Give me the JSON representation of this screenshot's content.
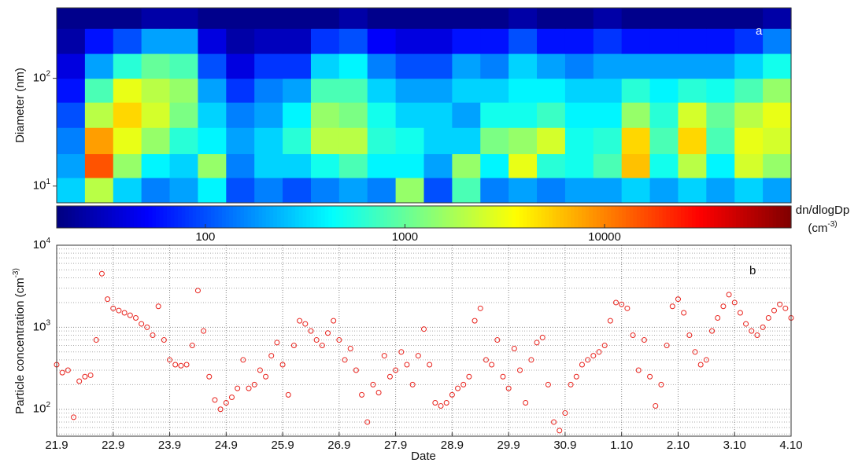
{
  "chart_data": [
    {
      "type": "heatmap",
      "ylabel": "Diameter (nm)",
      "annotation": "a",
      "xlim": [
        0,
        13
      ],
      "ylim": [
        7,
        450
      ],
      "log_y": true,
      "yticks": [
        {
          "value": 10,
          "label": "10^1"
        },
        {
          "value": 100,
          "label": "10^2"
        }
      ],
      "y_bins": [
        7,
        12,
        20,
        35,
        60,
        100,
        170,
        290,
        450
      ],
      "clim": [
        18,
        86000
      ],
      "cticks": [
        100,
        1000,
        10000
      ],
      "colormap": "jet",
      "colorbar_label": "dn/dlogDp",
      "colorbar_unit": "(cm^-3)",
      "values": [
        [
          300,
          2000,
          300,
          150,
          200,
          400,
          100,
          150,
          100,
          150,
          200,
          150,
          1500,
          100,
          800,
          150,
          200,
          150,
          200,
          200,
          300,
          200,
          300,
          200,
          300,
          200
        ],
        [
          200,
          15000,
          1500,
          400,
          300,
          1500,
          150,
          300,
          300,
          500,
          800,
          400,
          400,
          200,
          1500,
          400,
          3000,
          600,
          500,
          800,
          6000,
          500,
          2000,
          400,
          2500,
          1500
        ],
        [
          150,
          8000,
          3000,
          1500,
          600,
          400,
          200,
          300,
          600,
          2000,
          2000,
          600,
          500,
          300,
          300,
          1200,
          1500,
          2500,
          500,
          600,
          5000,
          800,
          5000,
          800,
          3000,
          2500
        ],
        [
          100,
          2000,
          5000,
          2500,
          1200,
          300,
          150,
          200,
          400,
          1500,
          1200,
          500,
          300,
          300,
          200,
          500,
          500,
          700,
          400,
          400,
          1500,
          600,
          2500,
          1000,
          2000,
          3000
        ],
        [
          60,
          800,
          3000,
          2000,
          1500,
          200,
          80,
          150,
          200,
          800,
          800,
          300,
          200,
          200,
          300,
          300,
          400,
          400,
          300,
          300,
          600,
          400,
          600,
          500,
          800,
          1500
        ],
        [
          40,
          200,
          600,
          1000,
          800,
          100,
          40,
          80,
          80,
          300,
          400,
          150,
          100,
          100,
          200,
          150,
          300,
          200,
          150,
          200,
          200,
          200,
          200,
          200,
          300,
          500
        ],
        [
          25,
          60,
          100,
          200,
          200,
          40,
          25,
          30,
          30,
          80,
          100,
          50,
          40,
          40,
          60,
          60,
          100,
          60,
          60,
          80,
          60,
          60,
          60,
          60,
          80,
          150
        ],
        [
          20,
          20,
          20,
          25,
          25,
          20,
          20,
          20,
          20,
          20,
          25,
          20,
          20,
          20,
          20,
          20,
          25,
          20,
          20,
          25,
          20,
          20,
          20,
          20,
          20,
          25
        ]
      ]
    },
    {
      "type": "scatter",
      "xlabel": "Date",
      "ylabel": "Particle concentration (cm^-3)",
      "annotation": "b",
      "color": "#e8231d",
      "log_y": true,
      "grid": true,
      "minor_grid": true,
      "xlim": [
        0,
        13
      ],
      "ylim": [
        47,
        10000
      ],
      "xticks": [
        {
          "value": 0,
          "label": "21.9"
        },
        {
          "value": 1,
          "label": "22.9"
        },
        {
          "value": 2,
          "label": "23.9"
        },
        {
          "value": 3,
          "label": "24.9"
        },
        {
          "value": 4,
          "label": "25.9"
        },
        {
          "value": 5,
          "label": "26.9"
        },
        {
          "value": 6,
          "label": "27.9"
        },
        {
          "value": 7,
          "label": "28.9"
        },
        {
          "value": 8,
          "label": "29.9"
        },
        {
          "value": 9,
          "label": "30.9"
        },
        {
          "value": 10,
          "label": "1.10"
        },
        {
          "value": 11,
          "label": "2.10"
        },
        {
          "value": 12,
          "label": "3.10"
        },
        {
          "value": 13,
          "label": "4.10"
        }
      ],
      "yticks": [
        {
          "value": 100,
          "label": "10^2"
        },
        {
          "value": 1000,
          "label": "10^3"
        },
        {
          "value": 10000,
          "label": "10^4"
        }
      ],
      "x": [
        0,
        0.1,
        0.2,
        0.3,
        0.4,
        0.5,
        0.6,
        0.7,
        0.8,
        0.9,
        1,
        1.1,
        1.2,
        1.3,
        1.4,
        1.5,
        1.6,
        1.7,
        1.8,
        1.9,
        2,
        2.1,
        2.2,
        2.3,
        2.4,
        2.5,
        2.6,
        2.7,
        2.8,
        2.9,
        3,
        3.1,
        3.2,
        3.3,
        3.4,
        3.5,
        3.6,
        3.7,
        3.8,
        3.9,
        4,
        4.1,
        4.2,
        4.3,
        4.4,
        4.5,
        4.6,
        4.7,
        4.8,
        4.9,
        5,
        5.1,
        5.2,
        5.3,
        5.4,
        5.5,
        5.6,
        5.7,
        5.8,
        5.9,
        6,
        6.1,
        6.2,
        6.3,
        6.4,
        6.5,
        6.6,
        6.7,
        6.8,
        6.9,
        7,
        7.1,
        7.2,
        7.3,
        7.4,
        7.5,
        7.6,
        7.7,
        7.8,
        7.9,
        8,
        8.1,
        8.2,
        8.3,
        8.4,
        8.5,
        8.6,
        8.7,
        8.8,
        8.9,
        9,
        9.1,
        9.2,
        9.3,
        9.4,
        9.5,
        9.6,
        9.7,
        9.8,
        9.9,
        10,
        10.1,
        10.2,
        10.3,
        10.4,
        10.5,
        10.6,
        10.7,
        10.8,
        10.9,
        11,
        11.1,
        11.2,
        11.3,
        11.4,
        11.5,
        11.6,
        11.7,
        11.8,
        11.9,
        12,
        12.1,
        12.2,
        12.3,
        12.4,
        12.5,
        12.6,
        12.7,
        12.8,
        12.9,
        13
      ],
      "values": [
        350,
        280,
        300,
        80,
        220,
        250,
        260,
        700,
        4500,
        2200,
        1700,
        1600,
        1500,
        1400,
        1300,
        1100,
        1000,
        800,
        1800,
        700,
        400,
        350,
        340,
        350,
        600,
        2800,
        900,
        250,
        130,
        100,
        120,
        140,
        180,
        400,
        180,
        200,
        300,
        250,
        450,
        650,
        350,
        150,
        600,
        1200,
        1100,
        900,
        700,
        600,
        850,
        1200,
        700,
        400,
        550,
        300,
        150,
        70,
        200,
        160,
        450,
        250,
        300,
        500,
        350,
        200,
        450,
        950,
        350,
        120,
        110,
        120,
        150,
        180,
        200,
        250,
        1200,
        1700,
        400,
        350,
        700,
        250,
        180,
        550,
        300,
        120,
        400,
        650,
        750,
        200,
        70,
        55,
        90,
        200,
        250,
        350,
        400,
        450,
        500,
        600,
        1200,
        2000,
        1900,
        1700,
        800,
        300,
        700,
        250,
        110,
        200,
        600,
        1800,
        2200,
        1500,
        800,
        500,
        350,
        400,
        900,
        1300,
        1800,
        2500,
        2000,
        1500,
        1100,
        900,
        800,
        1000,
        1300,
        1600,
        1900,
        1700,
        1300
      ]
    }
  ]
}
